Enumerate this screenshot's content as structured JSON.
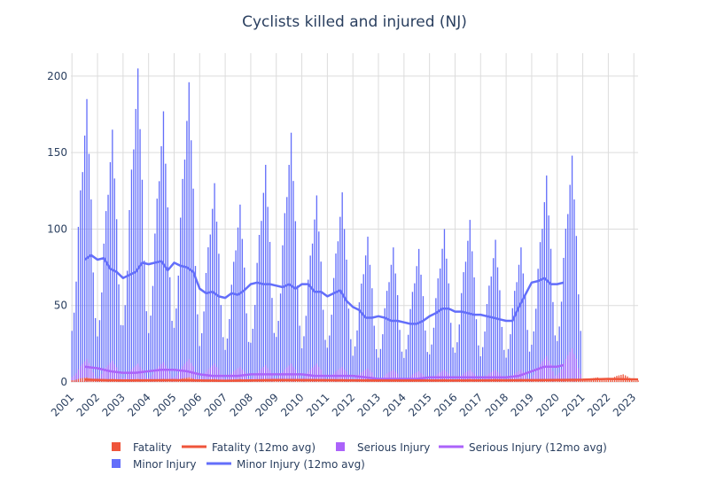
{
  "chart_data": {
    "type": "bar",
    "title": "Cyclists killed and injured (NJ)",
    "xlabel": "",
    "ylabel": "",
    "x_range": [
      "2001-01",
      "2023-03"
    ],
    "ylim": [
      0,
      215
    ],
    "y_ticks": [
      0,
      50,
      100,
      150,
      200
    ],
    "x_tick_labels": [
      "2001",
      "2002",
      "2003",
      "2004",
      "2005",
      "2006",
      "2007",
      "2008",
      "2009",
      "2010",
      "2011",
      "2012",
      "2013",
      "2014",
      "2015",
      "2016",
      "2017",
      "2018",
      "2019",
      "2020",
      "2021",
      "2022",
      "2023"
    ],
    "grid": true,
    "legend_position": "bottom",
    "colors": {
      "fatality": "#ef553b",
      "serious_injury": "#ab63fa",
      "minor_injury": "#636efa"
    },
    "legend": [
      {
        "label": "Fatality",
        "kind": "bar",
        "color": "#ef553b"
      },
      {
        "label": "Fatality (12mo avg)",
        "kind": "line",
        "color": "#ef553b"
      },
      {
        "label": "Serious Injury",
        "kind": "bar",
        "color": "#ab63fa"
      },
      {
        "label": "Serious Injury (12mo avg)",
        "kind": "line",
        "color": "#ab63fa"
      },
      {
        "label": "Minor Injury",
        "kind": "bar",
        "color": "#636efa"
      },
      {
        "label": "Minor Injury (12mo avg)",
        "kind": "line",
        "color": "#636efa"
      }
    ],
    "series": [
      {
        "name": "Minor Injury",
        "monthly_annual_shape": [
          0.28,
          0.38,
          0.55,
          0.85,
          1.05,
          1.15,
          1.35,
          1.55,
          1.25,
          1.0,
          0.6,
          0.35
        ],
        "yearly_peak": {
          "2001": 185,
          "2002": 165,
          "2003": 205,
          "2004": 177,
          "2005": 196,
          "2006": 130,
          "2007": 116,
          "2008": 142,
          "2009": 163,
          "2010": 122,
          "2011": 124,
          "2012": 95,
          "2013": 88,
          "2014": 87,
          "2015": 100,
          "2016": 106,
          "2017": 93,
          "2018": 88,
          "2019": 135,
          "2020": 148
        }
      },
      {
        "name": "Minor Injury (12mo avg)",
        "points": [
          [
            "2001-07",
            80
          ],
          [
            "2001-10",
            83
          ],
          [
            "2002-01",
            80
          ],
          [
            "2002-04",
            81
          ],
          [
            "2002-07",
            74
          ],
          [
            "2002-10",
            72
          ],
          [
            "2003-01",
            68
          ],
          [
            "2003-04",
            70
          ],
          [
            "2003-07",
            72
          ],
          [
            "2003-10",
            78
          ],
          [
            "2004-01",
            77
          ],
          [
            "2004-04",
            78
          ],
          [
            "2004-07",
            79
          ],
          [
            "2004-10",
            73
          ],
          [
            "2005-01",
            78
          ],
          [
            "2005-04",
            76
          ],
          [
            "2005-07",
            75
          ],
          [
            "2005-10",
            72
          ],
          [
            "2006-01",
            61
          ],
          [
            "2006-04",
            58
          ],
          [
            "2006-07",
            59
          ],
          [
            "2006-10",
            56
          ],
          [
            "2007-01",
            55
          ],
          [
            "2007-04",
            58
          ],
          [
            "2007-07",
            57
          ],
          [
            "2007-10",
            60
          ],
          [
            "2008-01",
            64
          ],
          [
            "2008-04",
            65
          ],
          [
            "2008-07",
            64
          ],
          [
            "2008-10",
            64
          ],
          [
            "2009-01",
            63
          ],
          [
            "2009-04",
            62
          ],
          [
            "2009-07",
            64
          ],
          [
            "2009-10",
            61
          ],
          [
            "2010-01",
            64
          ],
          [
            "2010-04",
            64
          ],
          [
            "2010-07",
            59
          ],
          [
            "2010-10",
            59
          ],
          [
            "2011-01",
            56
          ],
          [
            "2011-04",
            58
          ],
          [
            "2011-07",
            60
          ],
          [
            "2011-10",
            53
          ],
          [
            "2012-01",
            49
          ],
          [
            "2012-04",
            47
          ],
          [
            "2012-07",
            42
          ],
          [
            "2012-10",
            42
          ],
          [
            "2013-01",
            43
          ],
          [
            "2013-04",
            42
          ],
          [
            "2013-07",
            40
          ],
          [
            "2013-10",
            40
          ],
          [
            "2014-01",
            39
          ],
          [
            "2014-04",
            38
          ],
          [
            "2014-07",
            38
          ],
          [
            "2014-10",
            40
          ],
          [
            "2015-01",
            43
          ],
          [
            "2015-04",
            45
          ],
          [
            "2015-07",
            48
          ],
          [
            "2015-10",
            48
          ],
          [
            "2016-01",
            46
          ],
          [
            "2016-04",
            46
          ],
          [
            "2016-07",
            45
          ],
          [
            "2016-10",
            44
          ],
          [
            "2017-01",
            44
          ],
          [
            "2017-04",
            43
          ],
          [
            "2017-07",
            42
          ],
          [
            "2017-10",
            41
          ],
          [
            "2018-01",
            40
          ],
          [
            "2018-04",
            40
          ],
          [
            "2018-07",
            49
          ],
          [
            "2018-10",
            57
          ],
          [
            "2019-01",
            65
          ],
          [
            "2019-04",
            66
          ],
          [
            "2019-07",
            68
          ],
          [
            "2019-10",
            64
          ],
          [
            "2020-01",
            64
          ],
          [
            "2020-04",
            65
          ]
        ]
      },
      {
        "name": "Serious Injury",
        "monthly_annual_shape": [
          0.3,
          0.4,
          0.55,
          0.8,
          1.0,
          1.15,
          1.3,
          1.45,
          1.2,
          1.0,
          0.6,
          0.35
        ],
        "yearly_peak": {
          "2001": 15,
          "2002": 14,
          "2003": 12,
          "2004": 13,
          "2005": 15,
          "2006": 12,
          "2007": 10,
          "2008": 11,
          "2009": 12,
          "2010": 12,
          "2011": 10,
          "2012": 9,
          "2013": 8,
          "2014": 7,
          "2015": 8,
          "2016": 8,
          "2017": 8,
          "2018": 8,
          "2019": 17,
          "2020": 22
        }
      },
      {
        "name": "Serious Injury (12mo avg)",
        "points": [
          [
            "2001-07",
            10
          ],
          [
            "2002-01",
            9
          ],
          [
            "2002-07",
            7
          ],
          [
            "2003-01",
            6
          ],
          [
            "2003-07",
            6
          ],
          [
            "2004-01",
            7
          ],
          [
            "2004-07",
            8
          ],
          [
            "2005-01",
            8
          ],
          [
            "2005-07",
            7
          ],
          [
            "2006-01",
            5
          ],
          [
            "2006-07",
            4
          ],
          [
            "2007-01",
            4
          ],
          [
            "2007-07",
            4
          ],
          [
            "2008-01",
            5
          ],
          [
            "2008-07",
            5
          ],
          [
            "2009-01",
            5
          ],
          [
            "2009-07",
            5
          ],
          [
            "2010-01",
            5
          ],
          [
            "2010-07",
            4
          ],
          [
            "2011-01",
            4
          ],
          [
            "2011-07",
            4
          ],
          [
            "2012-01",
            4
          ],
          [
            "2012-07",
            3
          ],
          [
            "2013-01",
            2
          ],
          [
            "2013-07",
            2
          ],
          [
            "2014-01",
            2
          ],
          [
            "2014-07",
            2
          ],
          [
            "2015-01",
            3
          ],
          [
            "2015-07",
            3
          ],
          [
            "2016-01",
            3
          ],
          [
            "2016-07",
            3
          ],
          [
            "2017-01",
            3
          ],
          [
            "2017-07",
            3
          ],
          [
            "2018-01",
            3
          ],
          [
            "2018-07",
            4
          ],
          [
            "2019-01",
            7
          ],
          [
            "2019-07",
            10
          ],
          [
            "2020-01",
            10
          ],
          [
            "2020-04",
            11
          ]
        ]
      },
      {
        "name": "Fatality",
        "monthly_annual_shape": [
          0.6,
          0.6,
          0.8,
          1.0,
          1.2,
          1.3,
          1.4,
          1.5,
          1.3,
          1.1,
          0.8,
          0.6
        ],
        "yearly_peak": {
          "2001": 3,
          "2002": 2,
          "2003": 2,
          "2004": 2,
          "2005": 3,
          "2006": 2,
          "2007": 2,
          "2008": 2,
          "2009": 2,
          "2010": 2,
          "2011": 2,
          "2012": 2,
          "2013": 2,
          "2014": 2,
          "2015": 2,
          "2016": 2,
          "2017": 2,
          "2018": 2,
          "2019": 2,
          "2020": 2,
          "2021": 3,
          "2022": 5,
          "2023": 2
        }
      },
      {
        "name": "Fatality (12mo avg)",
        "points": [
          [
            "2001-07",
            1.5
          ],
          [
            "2003-01",
            1.0
          ],
          [
            "2005-01",
            1.2
          ],
          [
            "2007-01",
            0.8
          ],
          [
            "2009-01",
            1.3
          ],
          [
            "2011-01",
            1.2
          ],
          [
            "2013-01",
            1.0
          ],
          [
            "2015-01",
            1.0
          ],
          [
            "2017-01",
            1.1
          ],
          [
            "2019-01",
            1.2
          ],
          [
            "2021-01",
            1.5
          ],
          [
            "2022-01",
            2.0
          ],
          [
            "2023-03",
            1.7
          ]
        ]
      }
    ]
  }
}
